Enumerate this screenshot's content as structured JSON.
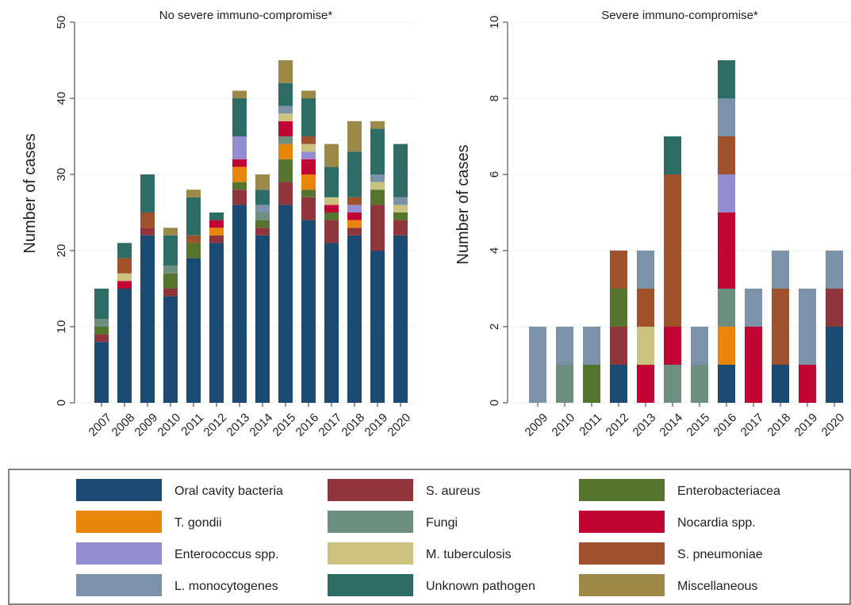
{
  "colors": {
    "Oral cavity bacteria": "#1b4a72",
    "S. aureus": "#90353b",
    "Enterobacteriacea": "#55752f",
    "T. gondii": "#e8860c",
    "Fungi": "#6e8f80",
    "Nocardia spp.": "#c10534",
    "Enterococcus spp.": "#938dd2",
    "M. tuberculosis": "#cac27e",
    "S. pneumoniae": "#a0522d",
    "L. monocytogenes": "#7b92a8",
    "Unknown pathogen": "#2d6d66",
    "Miscellaneous": "#9c8847"
  },
  "legend": {
    "entries": [
      "Oral cavity bacteria",
      "S. aureus",
      "Enterobacteriacea",
      "T. gondii",
      "Fungi",
      "Nocardia spp.",
      "Enterococcus spp.",
      "M. tuberculosis",
      "S. pneumoniae",
      "L. monocytogenes",
      "Unknown pathogen",
      "Miscellaneous"
    ]
  },
  "chart_data": [
    {
      "type": "bar",
      "stacked": true,
      "title": "No severe immuno-compromise*",
      "ylabel": "Number of cases",
      "xlabel": "",
      "ylim": [
        0,
        50
      ],
      "yticks": [
        0,
        10,
        20,
        30,
        40,
        50
      ],
      "grid": true,
      "categories": [
        "2007",
        "2008",
        "2009",
        "2010",
        "2011",
        "2012",
        "2013",
        "2014",
        "2015",
        "2016",
        "2017",
        "2018",
        "2019",
        "2020"
      ],
      "series": [
        {
          "name": "Oral cavity bacteria",
          "values": [
            8,
            15,
            22,
            14,
            19,
            21,
            26,
            22,
            26,
            24,
            21,
            22,
            20,
            22
          ]
        },
        {
          "name": "S. aureus",
          "values": [
            1,
            0,
            1,
            1,
            0,
            1,
            2,
            1,
            3,
            3,
            3,
            1,
            6,
            2
          ]
        },
        {
          "name": "Enterobacteriacea",
          "values": [
            1,
            0,
            0,
            2,
            2,
            0,
            1,
            1,
            3,
            1,
            1,
            0,
            2,
            1
          ]
        },
        {
          "name": "T. gondii",
          "values": [
            0,
            0,
            0,
            0,
            0,
            1,
            2,
            0,
            2,
            2,
            0,
            1,
            0,
            0
          ]
        },
        {
          "name": "Fungi",
          "values": [
            1,
            0,
            0,
            1,
            0,
            0,
            0,
            1,
            1,
            0,
            0,
            0,
            0,
            0
          ]
        },
        {
          "name": "Nocardia spp.",
          "values": [
            0,
            1,
            0,
            0,
            0,
            1,
            1,
            0,
            2,
            2,
            1,
            1,
            0,
            0
          ]
        },
        {
          "name": "Enterococcus spp.",
          "values": [
            0,
            0,
            0,
            0,
            0,
            0,
            3,
            0,
            0,
            1,
            0,
            1,
            0,
            0
          ]
        },
        {
          "name": "M. tuberculosis",
          "values": [
            0,
            1,
            0,
            0,
            0,
            0,
            0,
            0,
            1,
            1,
            1,
            0,
            1,
            1
          ]
        },
        {
          "name": "S. pneumoniae",
          "values": [
            0,
            2,
            2,
            0,
            1,
            0,
            0,
            0,
            0,
            1,
            0,
            1,
            0,
            0
          ]
        },
        {
          "name": "L. monocytogenes",
          "values": [
            0,
            0,
            0,
            0,
            0,
            0,
            0,
            1,
            1,
            0,
            0,
            0,
            1,
            1
          ]
        },
        {
          "name": "Unknown pathogen",
          "values": [
            4,
            2,
            5,
            4,
            5,
            1,
            5,
            2,
            3,
            5,
            4,
            6,
            6,
            7
          ]
        },
        {
          "name": "Miscellaneous",
          "values": [
            0,
            0,
            0,
            1,
            1,
            0,
            1,
            2,
            3,
            1,
            3,
            4,
            1,
            0
          ]
        }
      ]
    },
    {
      "type": "bar",
      "stacked": true,
      "title": "Severe immuno-compromise*",
      "ylabel": "Number of cases",
      "xlabel": "",
      "ylim": [
        0,
        10
      ],
      "yticks": [
        0,
        2,
        4,
        6,
        8,
        10
      ],
      "grid": true,
      "categories": [
        "2009",
        "2010",
        "2011",
        "2012",
        "2013",
        "2014",
        "2015",
        "2016",
        "2017",
        "2018",
        "2019",
        "2020"
      ],
      "series": [
        {
          "name": "Oral cavity bacteria",
          "values": [
            0,
            0,
            0,
            1,
            0,
            0,
            0,
            1,
            0,
            1,
            0,
            2
          ]
        },
        {
          "name": "S. aureus",
          "values": [
            0,
            0,
            0,
            1,
            0,
            0,
            0,
            0,
            0,
            0,
            0,
            1
          ]
        },
        {
          "name": "Enterobacteriacea",
          "values": [
            0,
            0,
            1,
            1,
            0,
            0,
            0,
            0,
            0,
            0,
            0,
            0
          ]
        },
        {
          "name": "T. gondii",
          "values": [
            0,
            0,
            0,
            0,
            0,
            0,
            0,
            1,
            0,
            0,
            0,
            0
          ]
        },
        {
          "name": "Fungi",
          "values": [
            0,
            1,
            0,
            0,
            0,
            1,
            1,
            1,
            0,
            0,
            0,
            0
          ]
        },
        {
          "name": "Nocardia spp.",
          "values": [
            0,
            0,
            0,
            0,
            1,
            1,
            0,
            2,
            2,
            0,
            1,
            0
          ]
        },
        {
          "name": "Enterococcus spp.",
          "values": [
            0,
            0,
            0,
            0,
            0,
            0,
            0,
            1,
            0,
            0,
            0,
            0
          ]
        },
        {
          "name": "M. tuberculosis",
          "values": [
            0,
            0,
            0,
            0,
            1,
            0,
            0,
            0,
            0,
            0,
            0,
            0
          ]
        },
        {
          "name": "S. pneumoniae",
          "values": [
            0,
            0,
            0,
            1,
            1,
            4,
            0,
            1,
            0,
            2,
            0,
            0
          ]
        },
        {
          "name": "L. monocytogenes",
          "values": [
            2,
            1,
            1,
            0,
            1,
            0,
            1,
            1,
            1,
            1,
            2,
            1
          ]
        },
        {
          "name": "Unknown pathogen",
          "values": [
            0,
            0,
            0,
            0,
            0,
            1,
            0,
            1,
            0,
            0,
            0,
            0
          ]
        },
        {
          "name": "Miscellaneous",
          "values": [
            0,
            0,
            0,
            0,
            0,
            0,
            0,
            0,
            0,
            0,
            0,
            0
          ]
        }
      ]
    }
  ]
}
